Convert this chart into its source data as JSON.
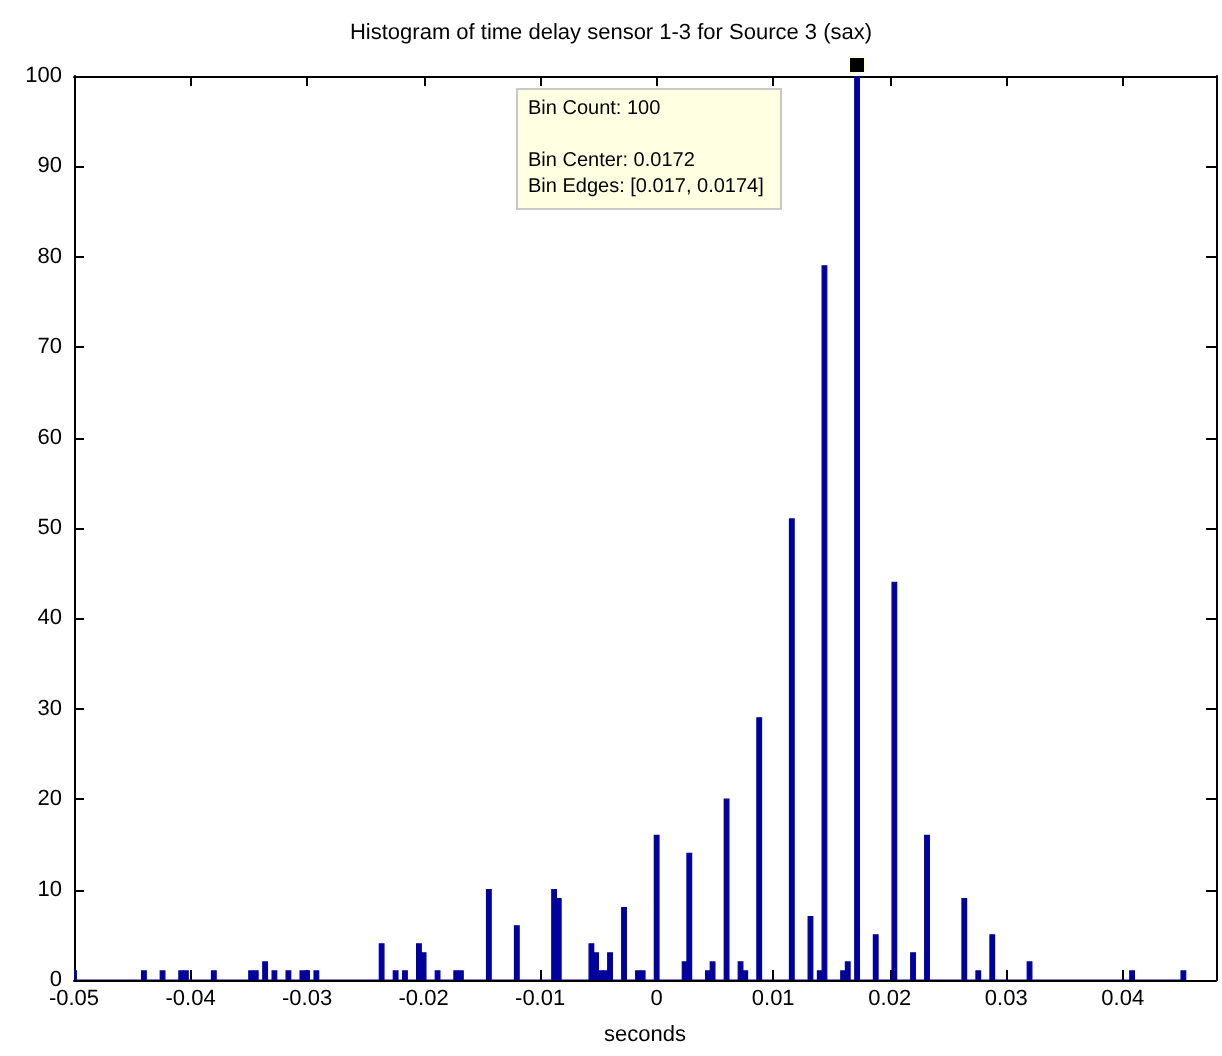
{
  "chart_data": {
    "type": "histogram",
    "title": "Histogram of time delay sensor 1-3 for Source 3 (sax)",
    "xlabel": "seconds",
    "color": "#00009c",
    "bins": [
      -0.05,
      -0.0498,
      -0.0442,
      -0.0438,
      -0.0426,
      -0.0422,
      -0.041,
      -0.0406,
      -0.0402,
      -0.0382,
      -0.0378,
      -0.035,
      -0.0346,
      -0.0342,
      -0.0338,
      -0.0334,
      -0.033,
      -0.0326,
      -0.0318,
      -0.0314,
      -0.0306,
      -0.0302,
      -0.0298,
      -0.0294,
      -0.029,
      -0.0238,
      -0.0234,
      -0.0226,
      -0.0222,
      -0.0218,
      -0.0214,
      -0.0206,
      -0.0202,
      -0.0198,
      -0.019,
      -0.0186,
      -0.0174,
      -0.017,
      -0.0166,
      -0.0146,
      -0.0142,
      -0.0122,
      -0.0118,
      -0.009,
      -0.0086,
      -0.0082,
      -0.0058,
      -0.0054,
      -0.005,
      -0.0046,
      -0.0042,
      -0.0038,
      -0.003,
      -0.0026,
      -0.0018,
      -0.0014,
      -0.001,
      -0.0002,
      0.0002,
      0.0022,
      0.0026,
      0.003,
      0.0042,
      0.0046,
      0.005,
      0.0058,
      0.0062,
      0.007,
      0.0074,
      0.0078,
      0.0086,
      0.009,
      0.0114,
      0.0118,
      0.013,
      0.0134,
      0.0138,
      0.0142,
      0.0146,
      0.0158,
      0.0162,
      0.0166,
      0.017,
      0.0174,
      0.0186,
      0.019,
      0.0202,
      0.0206,
      0.0218,
      0.0222,
      0.023,
      0.0234,
      0.0262,
      0.0266,
      0.0274,
      0.0278,
      0.0286,
      0.029,
      0.0318,
      0.0322,
      0.0406,
      0.041,
      0.045,
      0.0454
    ],
    "values": [
      1,
      0,
      1,
      0,
      1,
      0,
      1,
      1,
      0,
      1,
      0,
      1,
      1,
      0,
      2,
      0,
      1,
      0,
      1,
      0,
      1,
      1,
      0,
      1,
      0,
      4,
      0,
      1,
      0,
      1,
      0,
      4,
      3,
      0,
      1,
      0,
      1,
      1,
      0,
      10,
      0,
      6,
      0,
      10,
      9,
      0,
      4,
      3,
      1,
      1,
      3,
      0,
      8,
      0,
      1,
      1,
      0,
      16,
      0,
      2,
      14,
      0,
      1,
      2,
      0,
      20,
      0,
      2,
      1,
      0,
      29,
      0,
      51,
      0,
      7,
      0,
      1,
      79,
      0,
      1,
      2,
      0,
      100,
      0,
      5,
      0,
      44,
      0,
      3,
      0,
      16,
      0,
      9,
      0,
      1,
      0,
      5,
      0,
      2,
      0,
      1,
      0,
      1
    ],
    "xlim": [
      -0.05,
      0.048
    ],
    "xticks": [
      -0.05,
      -0.04,
      -0.03,
      -0.02,
      -0.01,
      0,
      0.01,
      0.02,
      0.03,
      0.04
    ],
    "ylim": [
      0,
      100
    ],
    "yticks": [
      0,
      10,
      20,
      30,
      40,
      50,
      60,
      70,
      80,
      90,
      100
    ],
    "annotations": [
      "Bin Count: 100",
      "Bin Center: 0.0172",
      "Bin Edges: [0.017, 0.0174]"
    ]
  }
}
